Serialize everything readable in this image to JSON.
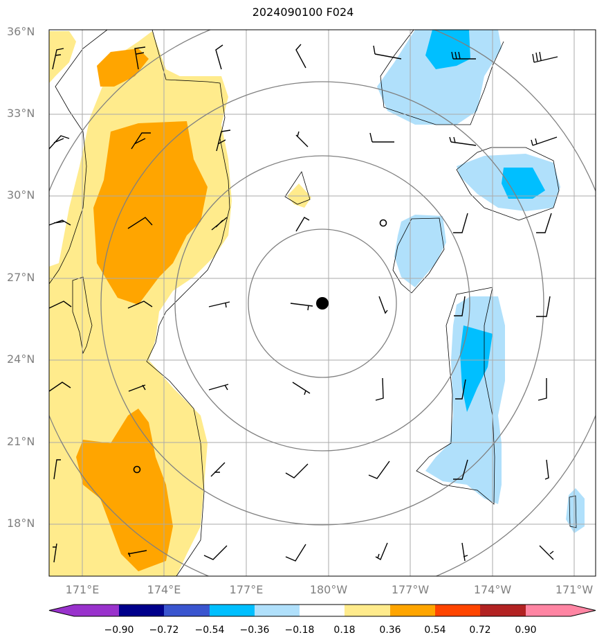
{
  "title": "2024090100 F024",
  "lat_labels": [
    "36°N",
    "33°N",
    "30°N",
    "27°N",
    "24°N",
    "21°N",
    "18°N"
  ],
  "lon_labels": [
    "171°E",
    "174°E",
    "177°E",
    "180°W",
    "177°W",
    "174°W",
    "171°W"
  ],
  "colorbar": {
    "colors": [
      "#9932cc",
      "#00008b",
      "#3a55cf",
      "#00bfff",
      "#b0e0fb",
      "#ffffff",
      "#ffeb8c",
      "#ffa500",
      "#ff4500",
      "#b22222",
      "#ff85a3"
    ],
    "tick_labels": [
      "−0.90",
      "−0.72",
      "−0.54",
      "−0.36",
      "−0.18",
      "0.18",
      "0.36",
      "0.54",
      "0.72",
      "0.90"
    ]
  },
  "center_marker": {
    "lat": 26.1,
    "lon": -179.8
  }
}
